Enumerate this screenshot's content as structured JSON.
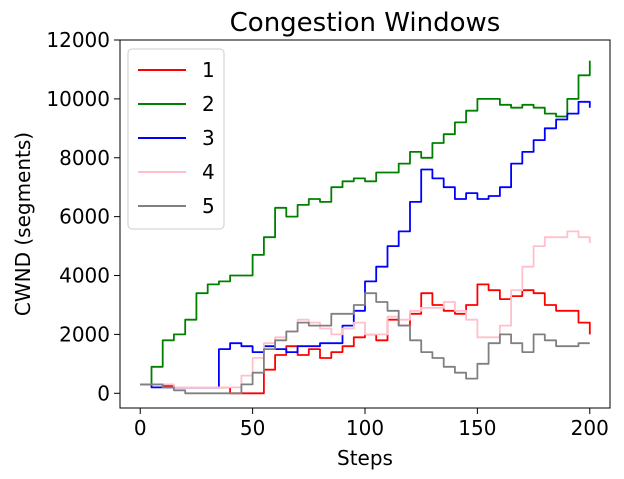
{
  "chart_data": {
    "type": "line",
    "title": "Congestion Windows",
    "xlabel": "Steps",
    "ylabel": "CWND (segments)",
    "xlim": [
      -9,
      209
    ],
    "ylim": [
      -500,
      12000
    ],
    "xticks": [
      0,
      50,
      100,
      150,
      200
    ],
    "yticks": [
      0,
      2000,
      4000,
      6000,
      8000,
      10000,
      12000
    ],
    "grid": false,
    "legend_position": "top-left",
    "series": [
      {
        "name": "1",
        "color": "#ff0000",
        "x": [
          0,
          5,
          10,
          15,
          20,
          25,
          30,
          35,
          40,
          45,
          50,
          55,
          60,
          65,
          70,
          75,
          80,
          85,
          90,
          95,
          100,
          105,
          110,
          115,
          120,
          125,
          130,
          135,
          140,
          145,
          150,
          155,
          160,
          165,
          170,
          175,
          180,
          185,
          190,
          195,
          200
        ],
        "y": [
          300,
          300,
          250,
          200,
          200,
          200,
          200,
          200,
          0,
          0,
          0,
          800,
          1300,
          1600,
          1300,
          1500,
          1200,
          1400,
          1600,
          1900,
          2000,
          1800,
          2500,
          2300,
          2700,
          3400,
          3000,
          2800,
          2700,
          3000,
          3700,
          3500,
          3200,
          3300,
          3500,
          3400,
          3000,
          2800,
          2800,
          2400,
          2000
        ]
      },
      {
        "name": "2",
        "color": "#008000",
        "x": [
          0,
          5,
          10,
          15,
          20,
          25,
          30,
          35,
          40,
          45,
          50,
          55,
          60,
          65,
          70,
          75,
          80,
          85,
          90,
          95,
          100,
          105,
          110,
          115,
          120,
          125,
          130,
          135,
          140,
          145,
          150,
          155,
          160,
          165,
          170,
          175,
          180,
          185,
          190,
          195,
          200
        ],
        "y": [
          300,
          900,
          1800,
          2000,
          2500,
          3400,
          3700,
          3800,
          4000,
          4000,
          4700,
          5300,
          6300,
          6000,
          6400,
          6600,
          6500,
          7000,
          7200,
          7300,
          7200,
          7500,
          7500,
          7800,
          8200,
          8000,
          8500,
          8800,
          9200,
          9600,
          10000,
          10000,
          9800,
          9700,
          9800,
          9700,
          9500,
          9400,
          10000,
          10800,
          11300
        ]
      },
      {
        "name": "3",
        "color": "#0000ff",
        "x": [
          0,
          5,
          10,
          15,
          20,
          25,
          30,
          35,
          40,
          45,
          50,
          55,
          60,
          65,
          70,
          75,
          80,
          85,
          90,
          95,
          100,
          105,
          110,
          115,
          120,
          125,
          130,
          135,
          140,
          145,
          150,
          155,
          160,
          165,
          170,
          175,
          180,
          185,
          190,
          195,
          200
        ],
        "y": [
          300,
          200,
          200,
          200,
          200,
          200,
          200,
          1500,
          1700,
          1600,
          1400,
          1600,
          1500,
          1400,
          1600,
          1600,
          1700,
          1700,
          2300,
          2800,
          3800,
          4300,
          5000,
          5500,
          6500,
          7600,
          7300,
          7000,
          6600,
          6800,
          6600,
          6700,
          7000,
          7800,
          8200,
          8600,
          9000,
          9300,
          9500,
          9900,
          9700
        ]
      },
      {
        "name": "4",
        "color": "#ffc0cb",
        "x": [
          0,
          5,
          10,
          15,
          20,
          25,
          30,
          35,
          40,
          45,
          50,
          55,
          60,
          65,
          70,
          75,
          80,
          85,
          90,
          95,
          100,
          105,
          110,
          115,
          120,
          125,
          130,
          135,
          140,
          145,
          150,
          155,
          160,
          165,
          170,
          175,
          180,
          185,
          190,
          195,
          200
        ],
        "y": [
          300,
          300,
          300,
          200,
          200,
          200,
          200,
          200,
          200,
          600,
          1200,
          1700,
          1900,
          2100,
          2500,
          2400,
          2200,
          2000,
          2200,
          2400,
          2000,
          2000,
          2600,
          2500,
          2800,
          2900,
          2900,
          3100,
          2800,
          2500,
          1900,
          1900,
          2300,
          3500,
          4300,
          5000,
          5300,
          5300,
          5500,
          5300,
          5100
        ]
      },
      {
        "name": "5",
        "color": "#808080",
        "x": [
          0,
          5,
          10,
          15,
          20,
          25,
          30,
          35,
          40,
          45,
          50,
          55,
          60,
          65,
          70,
          75,
          80,
          85,
          90,
          95,
          100,
          105,
          110,
          115,
          120,
          125,
          130,
          135,
          140,
          145,
          150,
          155,
          160,
          165,
          170,
          175,
          180,
          185,
          190,
          195,
          200
        ],
        "y": [
          300,
          300,
          200,
          100,
          0,
          0,
          0,
          0,
          0,
          300,
          700,
          1500,
          1800,
          2100,
          2400,
          2300,
          2300,
          2700,
          2700,
          3000,
          3400,
          3100,
          2800,
          2300,
          1800,
          1400,
          1200,
          900,
          700,
          500,
          1000,
          1700,
          2000,
          1700,
          1400,
          2000,
          1800,
          1600,
          1600,
          1700,
          1700
        ]
      }
    ]
  }
}
